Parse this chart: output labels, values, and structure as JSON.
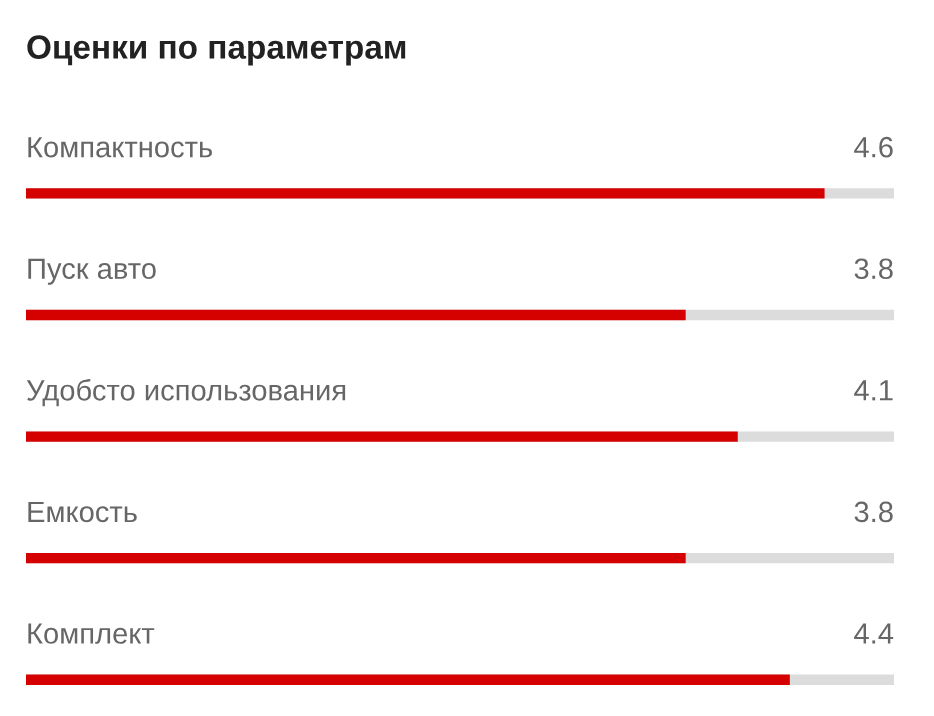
{
  "chart_data": {
    "type": "bar",
    "orientation": "horizontal",
    "title": "Оценки по параметрам",
    "categories": [
      "Компактность",
      "Пуск авто",
      "Удобсто использования",
      "Емкость",
      "Комплект"
    ],
    "series": [
      {
        "color": "#d50000",
        "values": [
          4.6,
          3.8,
          4.1,
          3.8,
          4.4
        ],
        "value_labels": [
          "4.6",
          "3.8",
          "4.1",
          "3.8",
          "4.4"
        ]
      }
    ],
    "xlim": [
      0,
      5
    ]
  }
}
